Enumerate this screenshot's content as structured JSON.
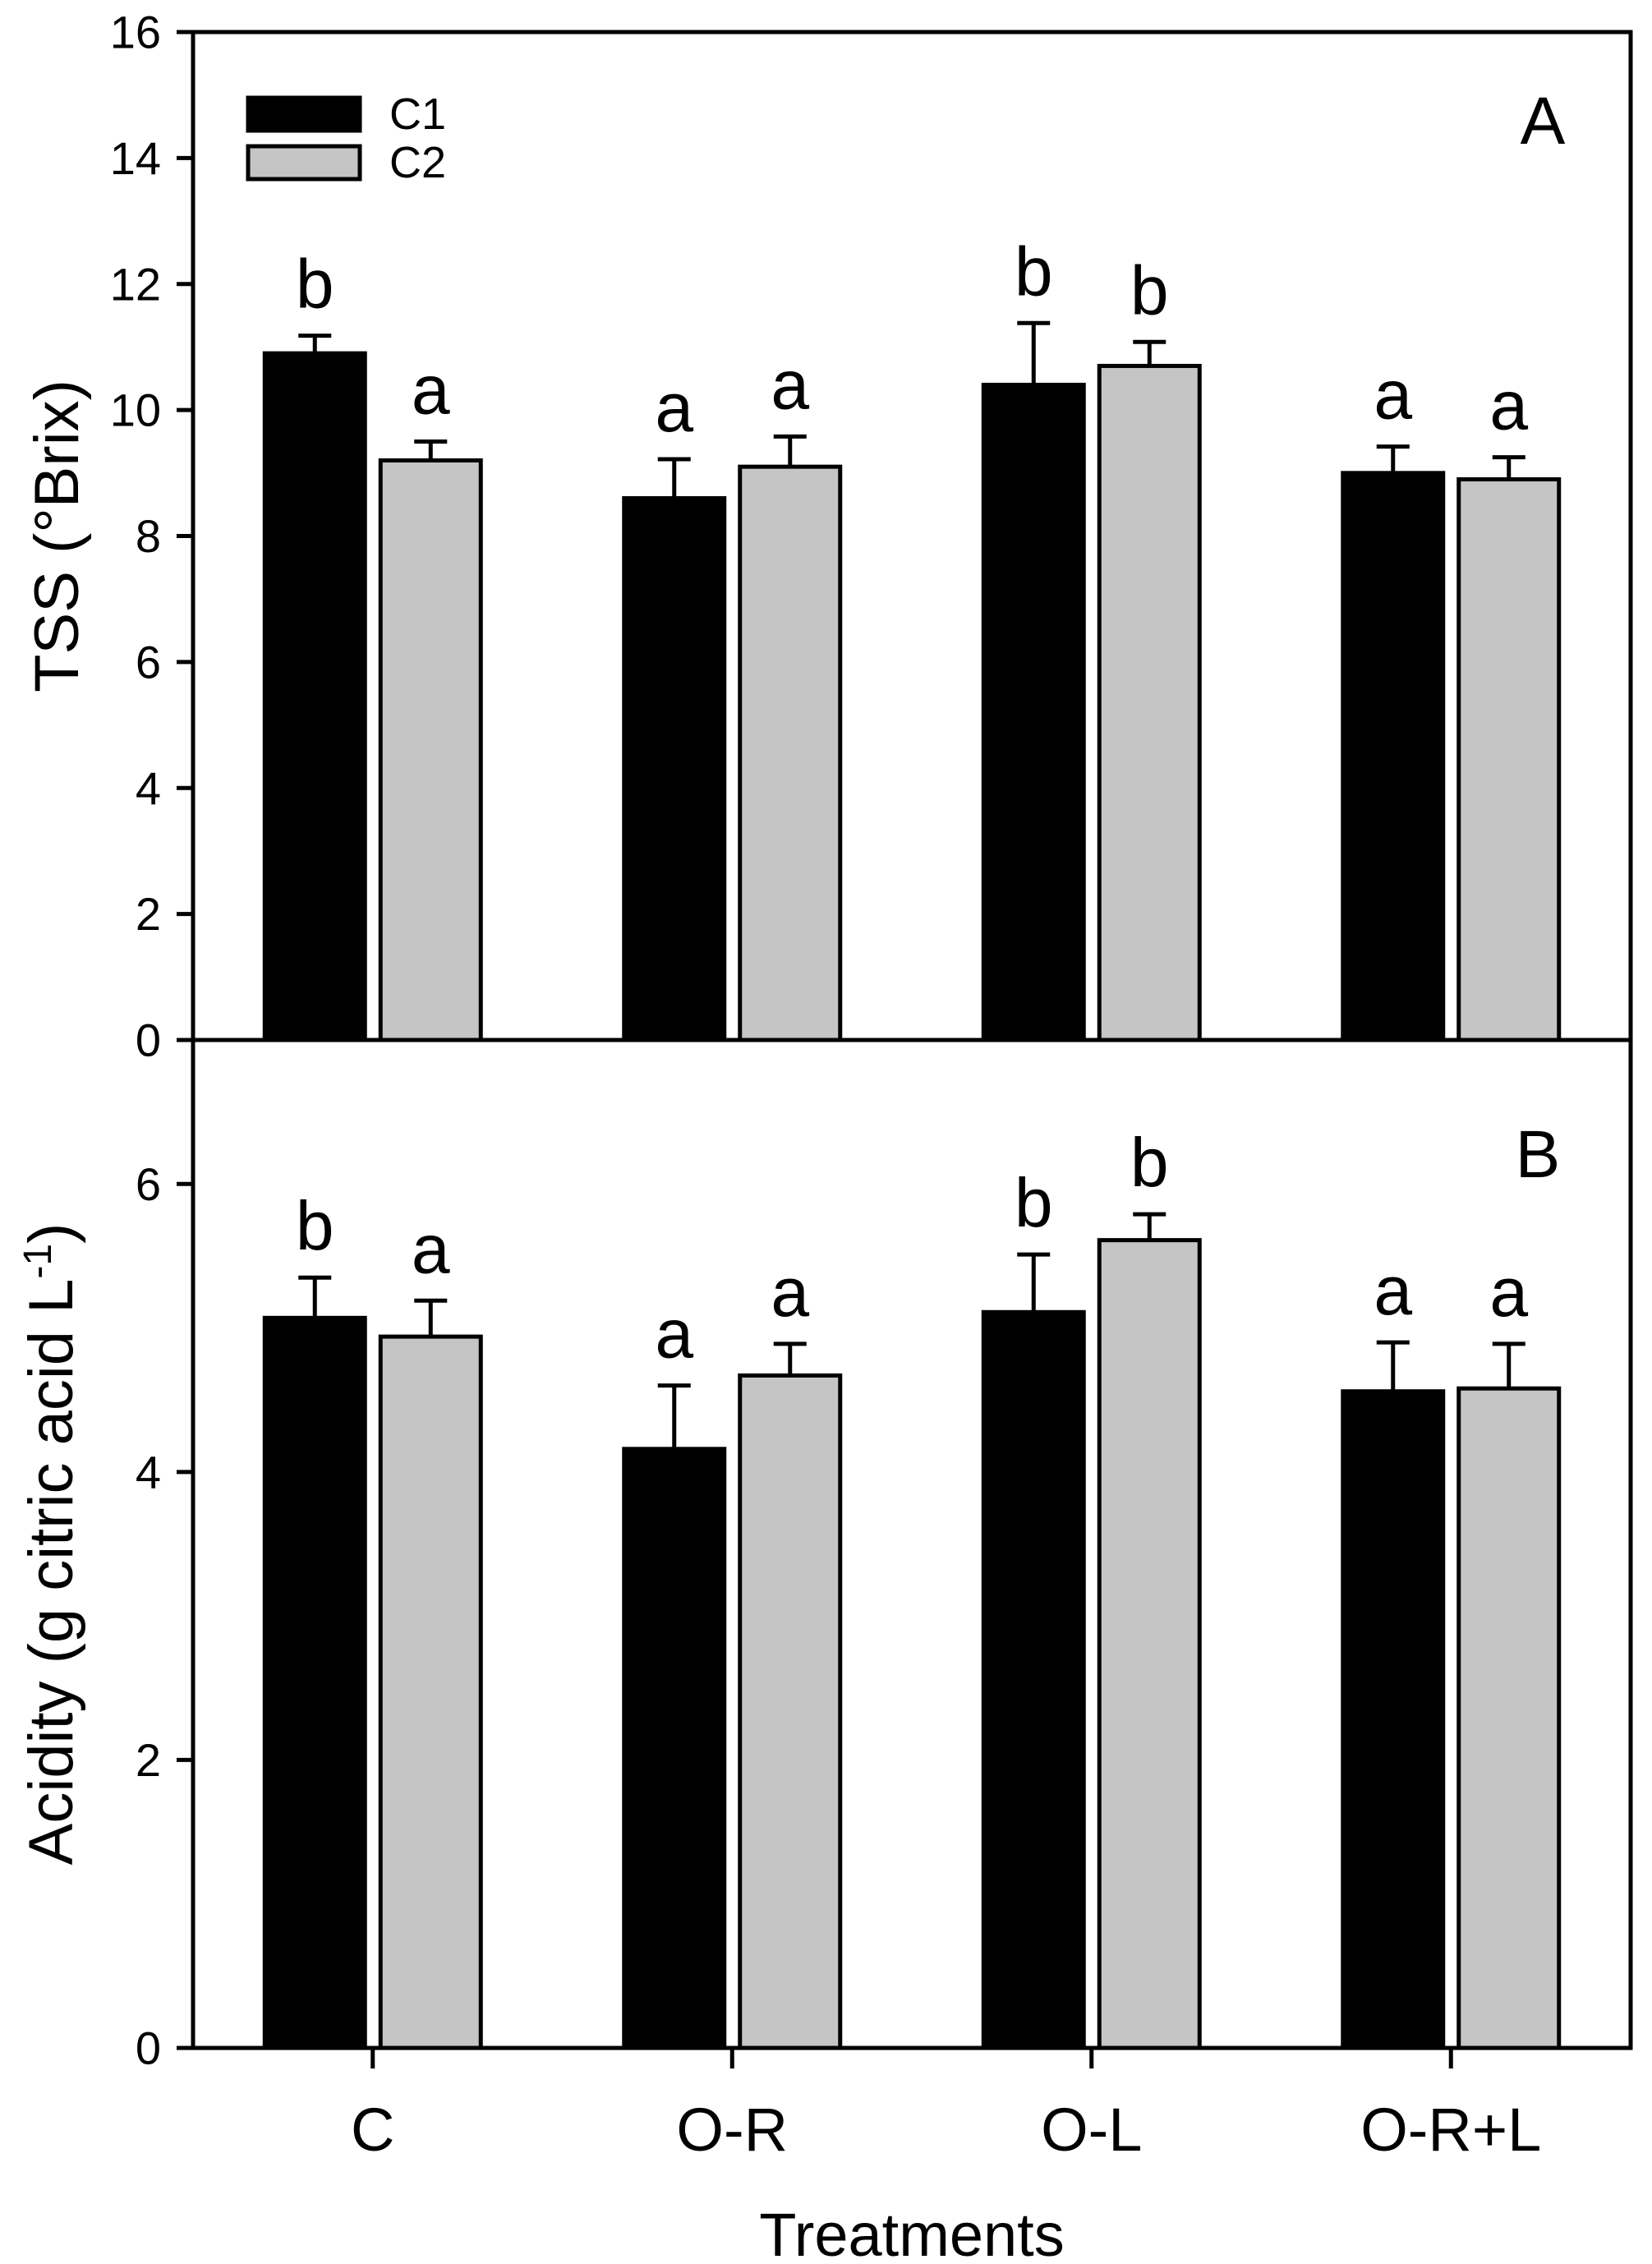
{
  "figure": {
    "background": "#ffffff",
    "frame_color": "#000000",
    "series": [
      {
        "key": "C1",
        "label": "C1",
        "fill": "#000000"
      },
      {
        "key": "C2",
        "label": "C2",
        "fill": "#c5c5c5"
      }
    ],
    "legend": {
      "entries": [
        "C1",
        "C2"
      ],
      "position": "top-left"
    },
    "xlabel": "Treatments",
    "categories": [
      "C",
      "O-R",
      "O-L",
      "O-R+L"
    ]
  },
  "chart_data": [
    {
      "type": "bar",
      "panel_label": "A",
      "ylabel": "TSS (°Brix)",
      "ylabel_parts": [
        {
          "t": "TSS (°Brix)",
          "sup": false
        }
      ],
      "ylim": [
        0,
        16
      ],
      "yticks": [
        0,
        2,
        4,
        6,
        8,
        10,
        12,
        14,
        16
      ],
      "grid": false,
      "legend_position": "top-left",
      "categories": [
        "C",
        "O-R",
        "O-L",
        "O-R+L"
      ],
      "series": [
        {
          "name": "C1",
          "fill": "#000000",
          "values": [
            10.9,
            8.6,
            10.4,
            9.0
          ],
          "errors": [
            0.28,
            0.62,
            0.98,
            0.42
          ],
          "letters": [
            "b",
            "a",
            "b",
            "a"
          ]
        },
        {
          "name": "C2",
          "fill": "#c5c5c5",
          "values": [
            9.2,
            9.1,
            10.7,
            8.9
          ],
          "errors": [
            0.3,
            0.48,
            0.38,
            0.35
          ],
          "letters": [
            "a",
            "a",
            "b",
            "a"
          ]
        }
      ]
    },
    {
      "type": "bar",
      "panel_label": "B",
      "ylabel": "Acidity (g citric acid L-1)",
      "ylabel_parts": [
        {
          "t": "Acidity (g citric acid L",
          "sup": false
        },
        {
          "t": "-1",
          "sup": true
        },
        {
          "t": ")",
          "sup": false
        }
      ],
      "ylim": [
        0,
        7
      ],
      "yticks": [
        0,
        2,
        4,
        6
      ],
      "grid": false,
      "xlabel": "Treatments",
      "categories": [
        "C",
        "O-R",
        "O-L",
        "O-R+L"
      ],
      "series": [
        {
          "name": "C1",
          "fill": "#000000",
          "values": [
            5.07,
            4.16,
            5.11,
            4.56
          ],
          "errors": [
            0.28,
            0.44,
            0.4,
            0.34
          ],
          "letters": [
            "b",
            "a",
            "b",
            "a"
          ]
        },
        {
          "name": "C2",
          "fill": "#c5c5c5",
          "values": [
            4.94,
            4.67,
            5.61,
            4.58
          ],
          "errors": [
            0.25,
            0.22,
            0.18,
            0.31
          ],
          "letters": [
            "a",
            "a",
            "b",
            "a"
          ]
        }
      ]
    }
  ]
}
